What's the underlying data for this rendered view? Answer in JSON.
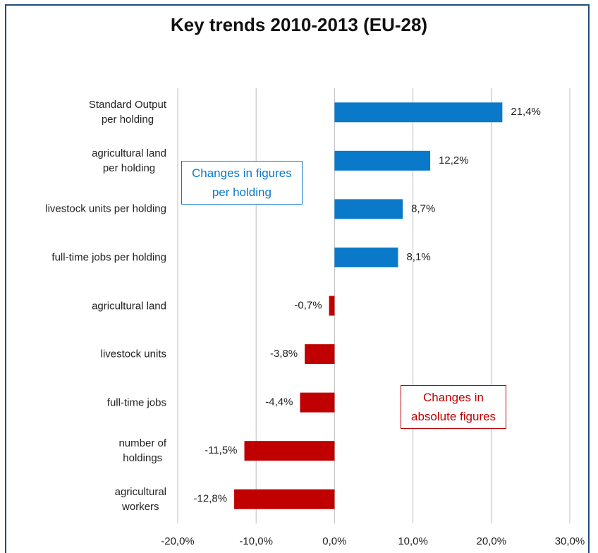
{
  "chart_data": {
    "type": "barh",
    "title": "Key trends 2010-2013 (EU-28)",
    "categories": [
      "Standard Output\nper holding",
      "agricultural land\nper holding",
      "livestock units per holding",
      "full-time jobs per holding",
      "agricultural land",
      "livestock units",
      "full-time jobs",
      "number of\nholdings",
      "agricultural\nworkers"
    ],
    "values": [
      21.4,
      12.2,
      8.7,
      8.1,
      -0.7,
      -3.8,
      -4.4,
      -11.5,
      -12.8
    ],
    "value_labels": [
      "21,4%",
      "12,2%",
      "8,7%",
      "8,1%",
      "-0,7%",
      "-3,8%",
      "-4,4%",
      "-11,5%",
      "-12,8%"
    ],
    "colors": [
      "#0b79c9",
      "#0b79c9",
      "#0b79c9",
      "#0b79c9",
      "#c00000",
      "#c00000",
      "#c00000",
      "#c00000",
      "#c00000"
    ],
    "xlim": [
      -20,
      30
    ],
    "xticks": [
      {
        "value": -20,
        "label": "-20,0%"
      },
      {
        "value": -10,
        "label": "-10,0%"
      },
      {
        "value": 0,
        "label": "0,0%"
      },
      {
        "value": 10,
        "label": "10,0%"
      },
      {
        "value": 20,
        "label": "20,0%"
      },
      {
        "value": 30,
        "label": "30,0%"
      }
    ],
    "grid": true,
    "annotations": [
      {
        "text": "Changes in figures\nper holding",
        "color": "#0b79c9"
      },
      {
        "text": "Changes in\nabsolute figures",
        "color": "#c00000"
      }
    ]
  }
}
